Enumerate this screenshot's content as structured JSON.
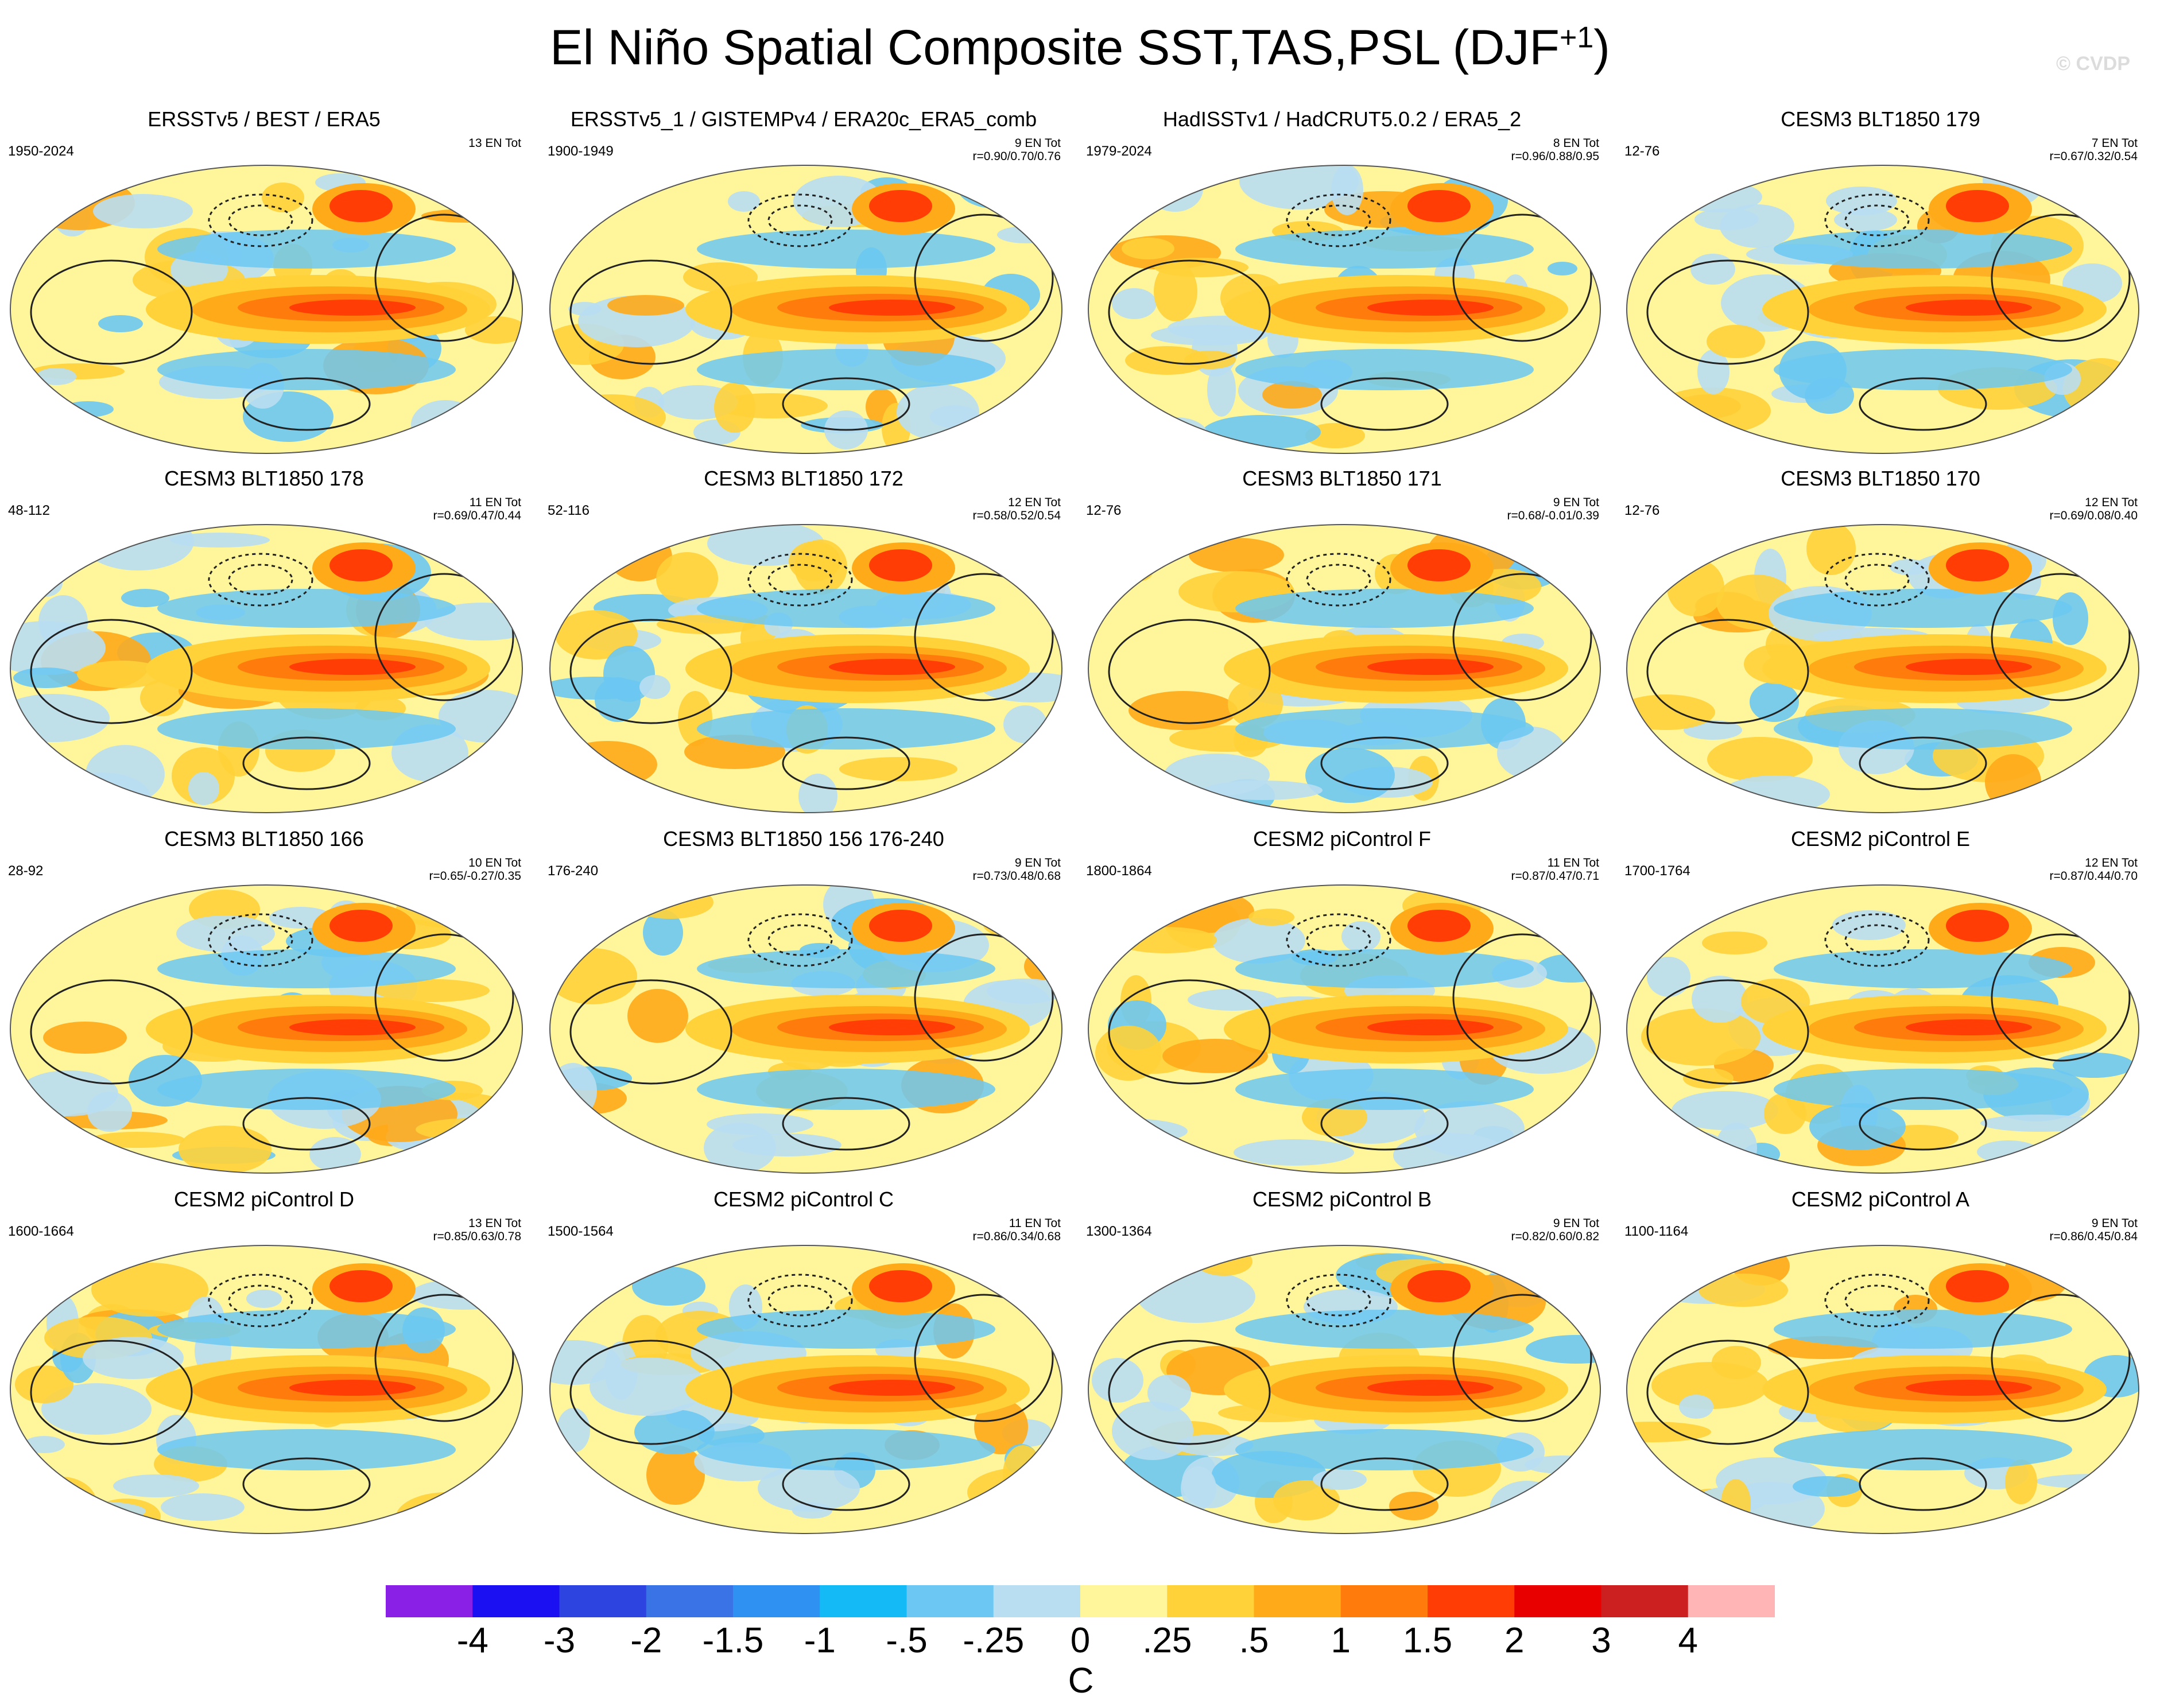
{
  "title": "El Niño Spatial Composite SST,TAS,PSL (DJF",
  "title_superscript": "+1",
  "title_suffix": ")",
  "watermark": "© CVDP",
  "chart_data": {
    "type": "heatmap",
    "description_variables": "SST, TAS, PSL",
    "season": "DJF+1",
    "colorbar": {
      "units": "C",
      "labels": [
        "-4",
        "-3",
        "-2",
        "-1.5",
        "-1",
        "-.5",
        "-.25",
        "0",
        ".25",
        ".5",
        "1",
        "1.5",
        "2",
        "3",
        "4"
      ],
      "colors": [
        "#8a1fe6",
        "#1a10f2",
        "#2d44e0",
        "#3a73e6",
        "#2f92f2",
        "#14baf5",
        "#6cc8f2",
        "#b9def2",
        "#fff59b",
        "#ffd23a",
        "#ffaa19",
        "#ff7c0c",
        "#ff3d05",
        "#e80000",
        "#cc2020",
        "#ffb5b5"
      ]
    },
    "panels": [
      {
        "title": "ERSSTv5 / BEST / ERA5",
        "years": "1950-2024",
        "count": "13 EN Tot",
        "corr": ""
      },
      {
        "title": "ERSSTv5_1 / GISTEMPv4 / ERA20c_ERA5_comb",
        "years": "1900-1949",
        "count": "9 EN Tot",
        "corr": "r=0.90/0.70/0.76"
      },
      {
        "title": "HadISSTv1 / HadCRUT5.0.2 / ERA5_2",
        "years": "1979-2024",
        "count": "8 EN Tot",
        "corr": "r=0.96/0.88/0.95"
      },
      {
        "title": "CESM3 BLT1850 179",
        "years": "12-76",
        "count": "7 EN Tot",
        "corr": "r=0.67/0.32/0.54"
      },
      {
        "title": "CESM3 BLT1850 178",
        "years": "48-112",
        "count": "11 EN Tot",
        "corr": "r=0.69/0.47/0.44"
      },
      {
        "title": "CESM3 BLT1850 172",
        "years": "52-116",
        "count": "12 EN Tot",
        "corr": "r=0.58/0.52/0.54"
      },
      {
        "title": "CESM3 BLT1850 171",
        "years": "12-76",
        "count": "9 EN Tot",
        "corr": "r=0.68/-0.01/0.39"
      },
      {
        "title": "CESM3 BLT1850 170",
        "years": "12-76",
        "count": "12 EN Tot",
        "corr": "r=0.69/0.08/0.40"
      },
      {
        "title": "CESM3 BLT1850 166",
        "years": "28-92",
        "count": "10 EN Tot",
        "corr": "r=0.65/-0.27/0.35"
      },
      {
        "title": "CESM3 BLT1850 156 176-240",
        "years": "176-240",
        "count": "9 EN Tot",
        "corr": "r=0.73/0.48/0.68"
      },
      {
        "title": "CESM2 piControl F",
        "years": "1800-1864",
        "count": "11 EN Tot",
        "corr": "r=0.87/0.47/0.71"
      },
      {
        "title": "CESM2 piControl E",
        "years": "1700-1764",
        "count": "12 EN Tot",
        "corr": "r=0.87/0.44/0.70"
      },
      {
        "title": "CESM2 piControl D",
        "years": "1600-1664",
        "count": "13 EN Tot",
        "corr": "r=0.85/0.63/0.78"
      },
      {
        "title": "CESM2 piControl C",
        "years": "1500-1564",
        "count": "11 EN Tot",
        "corr": "r=0.86/0.34/0.68"
      },
      {
        "title": "CESM2 piControl B",
        "years": "1300-1364",
        "count": "9 EN Tot",
        "corr": "r=0.82/0.60/0.82"
      },
      {
        "title": "CESM2 piControl A",
        "years": "1100-1164",
        "count": "9 EN Tot",
        "corr": "r=0.86/0.45/0.84"
      }
    ]
  }
}
